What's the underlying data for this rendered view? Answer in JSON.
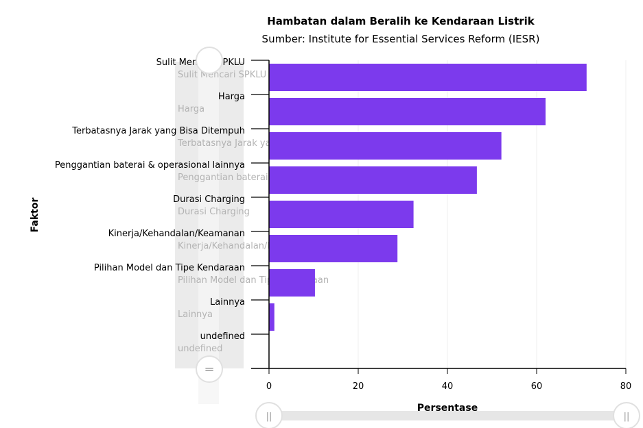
{
  "chart_data": {
    "type": "bar",
    "orientation": "horizontal",
    "title": "Hambatan dalam Beralih ke Kendaraan Listrik",
    "subtitle": "Sumber: Institute for Essential Services Reform (IESR)",
    "xlabel": "Persentase",
    "ylabel": "Faktor",
    "categories": [
      "Sulit Mencari SPKLU",
      "Harga",
      "Terbatasnya Jarak yang Bisa Ditempuh",
      "Penggantian baterai & operasional lainnya",
      "Durasi Charging",
      "Kinerja/Kehandalan/Keamanan",
      "Pilihan Model dan Tipe Kendaraan",
      "Lainnya",
      "undefined"
    ],
    "values": [
      71.2,
      62,
      52.1,
      46.6,
      32.4,
      28.8,
      10.3,
      1.2,
      0
    ],
    "xlim": [
      0,
      80
    ],
    "xticks": [
      "0",
      "20",
      "40",
      "60",
      "80"
    ],
    "bar_color": "#7c3aed",
    "grid": true
  },
  "controls": {
    "slider_handle_glyph": "=",
    "x_handle_glyph": "||"
  }
}
